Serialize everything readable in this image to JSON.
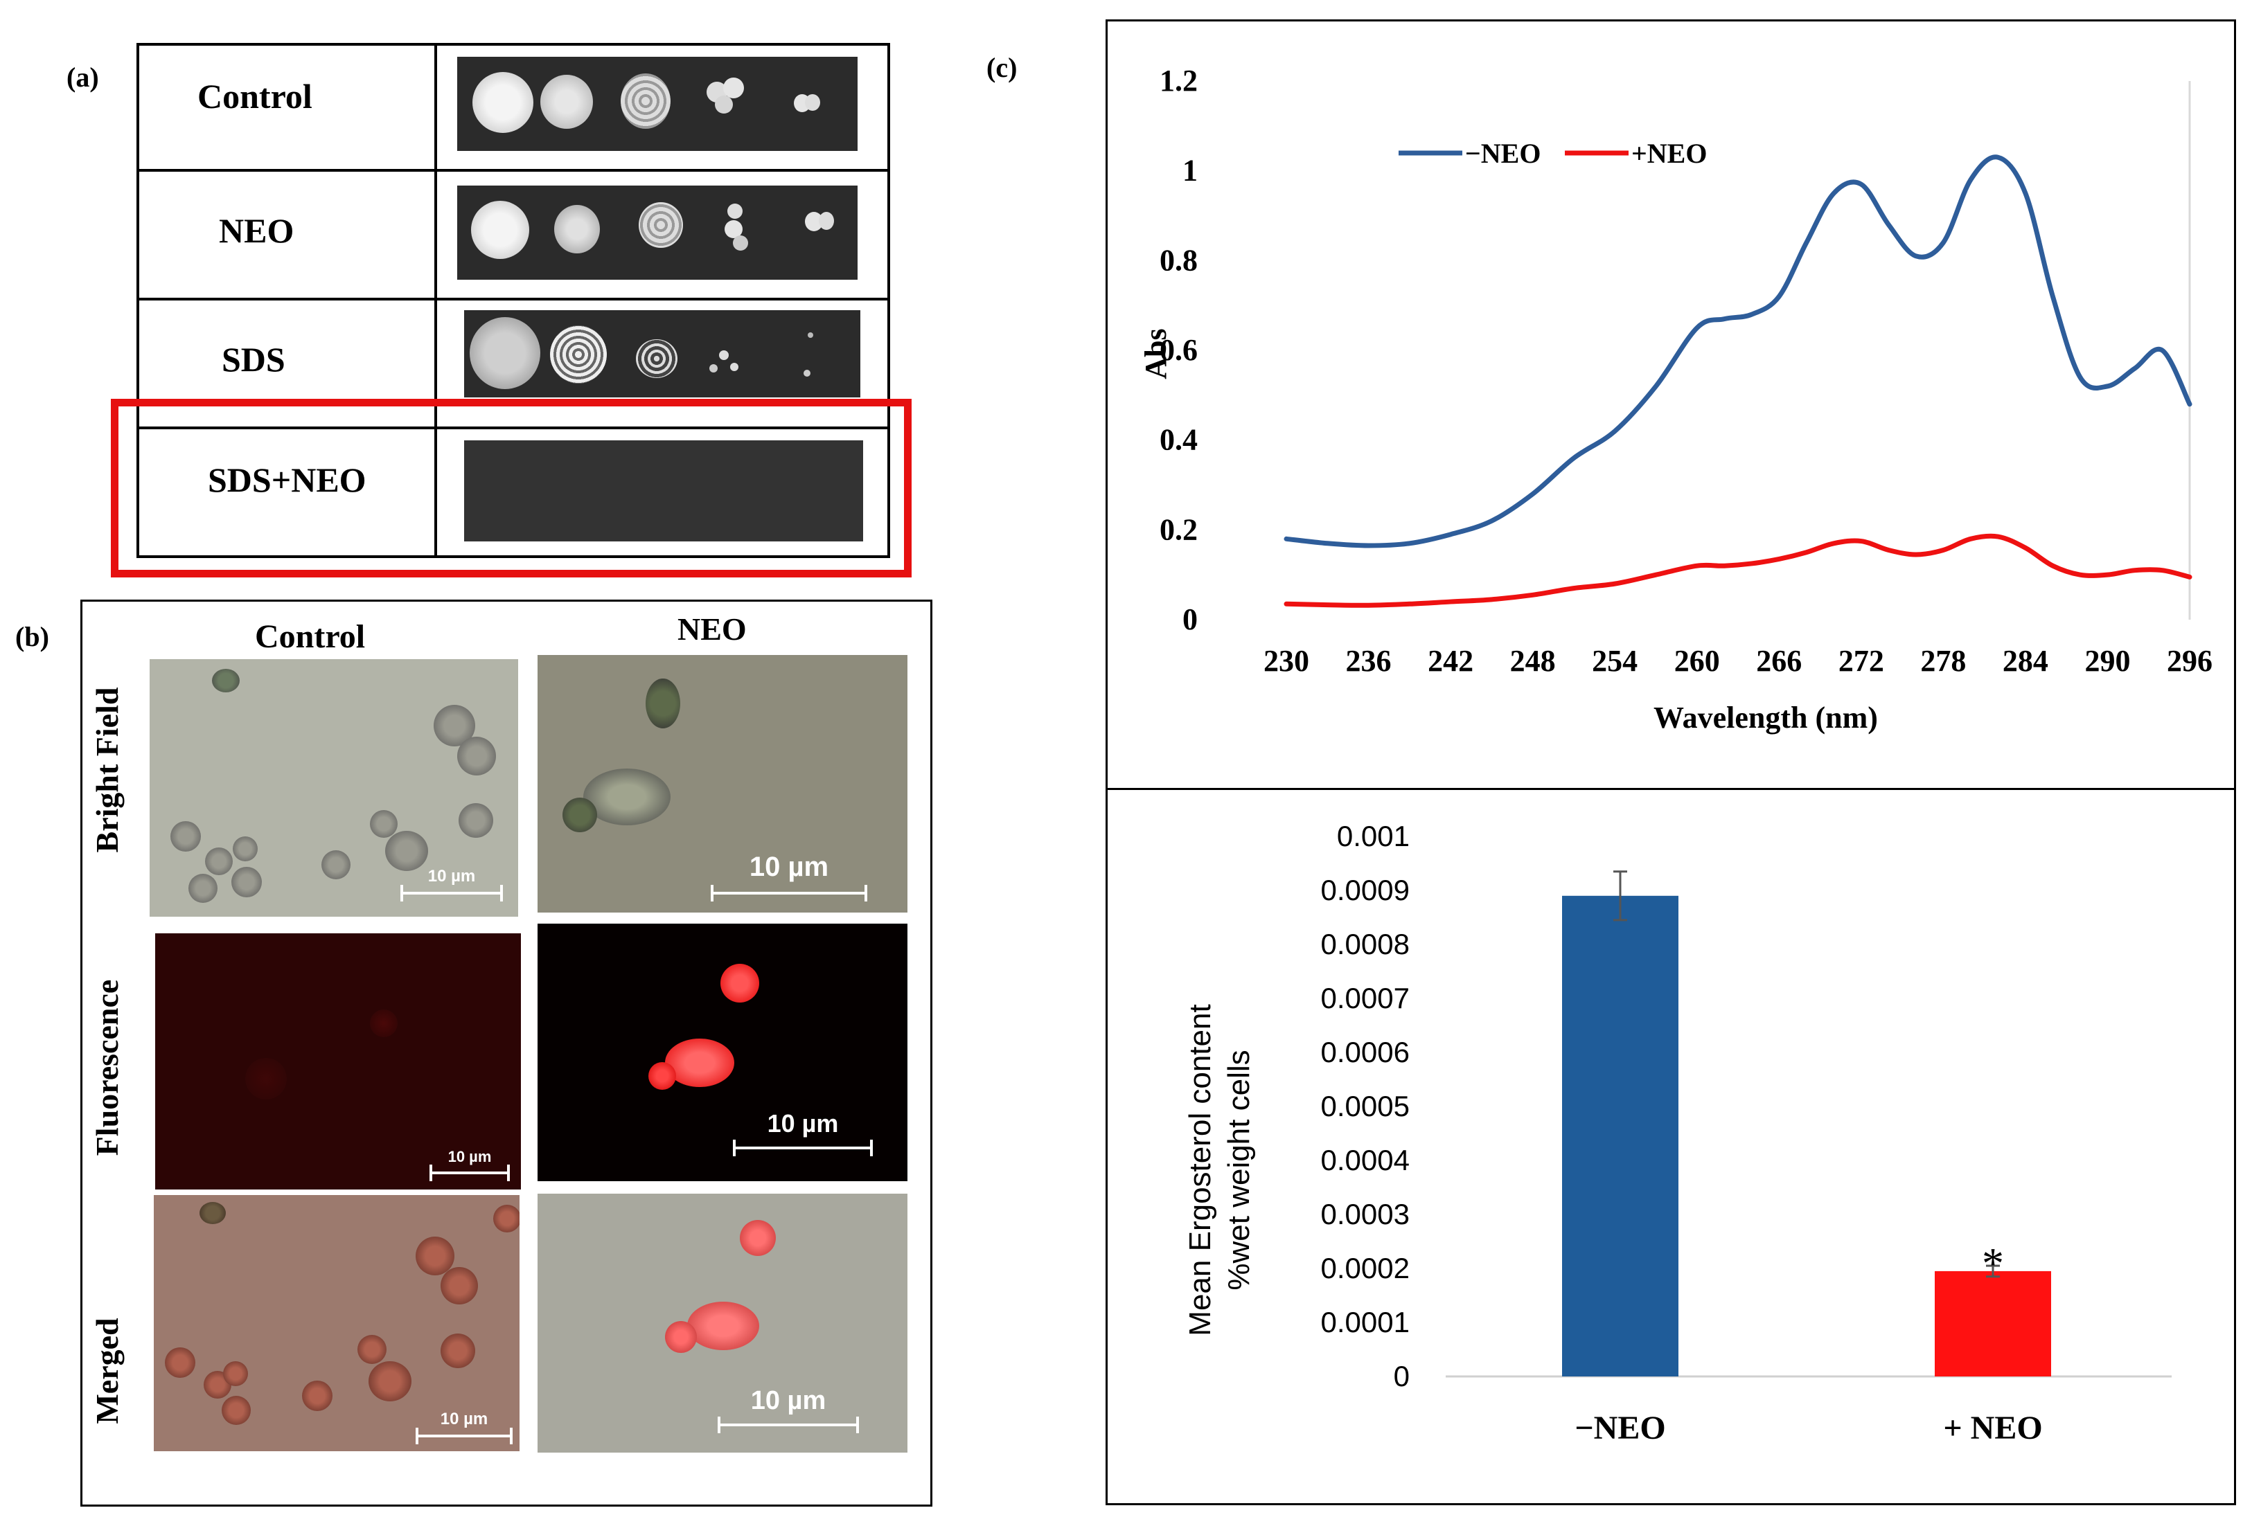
{
  "panel_a": {
    "label": "(a)",
    "rows": [
      {
        "name": "Control"
      },
      {
        "name": "NEO"
      },
      {
        "name": "SDS"
      },
      {
        "name": "SDS+NEO"
      }
    ]
  },
  "panel_b": {
    "label": "(b)",
    "columns": [
      "Control",
      "NEO"
    ],
    "rows": [
      "Bright Field",
      "Fluorescence",
      "Merged"
    ],
    "scale_text": "10 µm"
  },
  "panel_c": {
    "label": "(c)"
  },
  "chart_data": [
    {
      "type": "line",
      "title": "",
      "xlabel": "Wavelength (nm)",
      "ylabel": "Abs",
      "xlim": [
        230,
        296
      ],
      "ylim": [
        0,
        1.2
      ],
      "xticks": [
        "230",
        "236",
        "242",
        "248",
        "254",
        "260",
        "266",
        "272",
        "278",
        "284",
        "290",
        "296"
      ],
      "yticks": [
        "0",
        "0.2",
        "0.4",
        "0.6",
        "0.8",
        "1",
        "1.2"
      ],
      "legend_position": "top-left",
      "grid": false,
      "x": [
        230,
        233,
        236,
        239,
        242,
        245,
        248,
        251,
        254,
        257,
        260,
        262,
        264,
        266,
        268,
        270,
        272,
        274,
        276,
        278,
        280,
        282,
        284,
        286,
        288,
        290,
        292,
        294,
        296
      ],
      "series": [
        {
          "name": "−NEO",
          "color": "#2e5d9a",
          "values": [
            0.18,
            0.17,
            0.165,
            0.17,
            0.19,
            0.22,
            0.28,
            0.36,
            0.42,
            0.52,
            0.65,
            0.67,
            0.68,
            0.72,
            0.84,
            0.95,
            0.97,
            0.88,
            0.81,
            0.84,
            0.98,
            1.03,
            0.95,
            0.72,
            0.54,
            0.52,
            0.56,
            0.6,
            0.48
          ]
        },
        {
          "name": "+NEO",
          "color": "#ee1111",
          "values": [
            0.035,
            0.033,
            0.032,
            0.035,
            0.04,
            0.045,
            0.055,
            0.07,
            0.08,
            0.1,
            0.12,
            0.12,
            0.125,
            0.135,
            0.15,
            0.17,
            0.175,
            0.155,
            0.145,
            0.155,
            0.18,
            0.185,
            0.16,
            0.12,
            0.1,
            0.1,
            0.11,
            0.11,
            0.095
          ]
        }
      ]
    },
    {
      "type": "bar",
      "title": "",
      "xlabel": "",
      "ylabel": "Mean Ergosterol content %wet weight cells",
      "ylabel_lines": [
        "Mean Ergosterol content",
        "%wet weight cells"
      ],
      "ylim": [
        0,
        0.001
      ],
      "yticks": [
        "0",
        "0.0001",
        "0.0002",
        "0.0003",
        "0.0004",
        "0.0005",
        "0.0006",
        "0.0007",
        "0.0008",
        "0.0009",
        "0.001"
      ],
      "categories": [
        "−NEO",
        "+ NEO"
      ],
      "values": [
        0.00089,
        0.000195
      ],
      "errors": [
        4.5e-05,
        1e-05
      ],
      "colors": [
        "#1f5c99",
        "#ff1111"
      ],
      "annotations": [
        "",
        "*"
      ],
      "grid": false
    }
  ]
}
